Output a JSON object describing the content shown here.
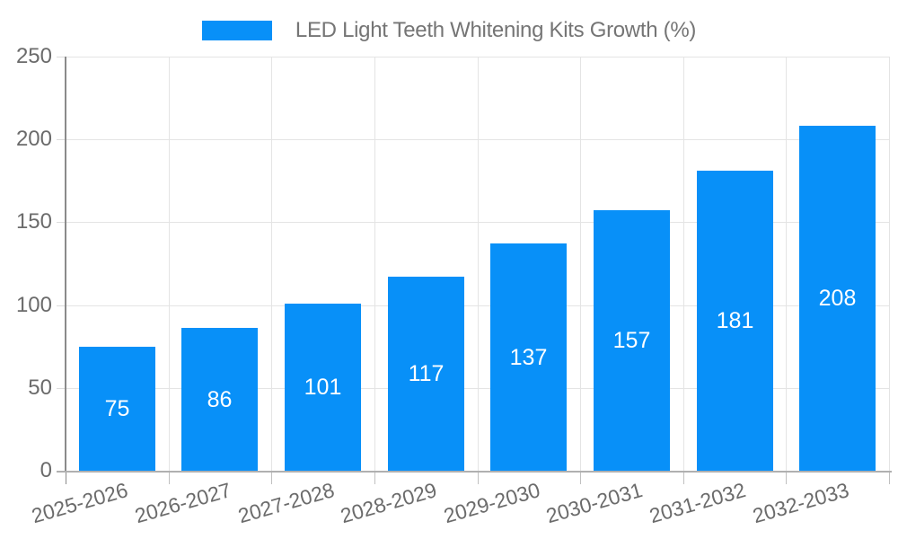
{
  "legend": {
    "label": "LED Light Teeth Whitening Kits Growth (%)"
  },
  "colors": {
    "bar": "#0890f8",
    "background": "#ffffff",
    "grid": "#e4e4e4",
    "y_axis_line": "#8a8a8a",
    "x_axis_line": "#b0b0b0",
    "x_tick": "#c0c0c0",
    "y_tick": "#dcdcdc",
    "axis_label_text": "#6b6b6b",
    "legend_text": "#757575",
    "value_label_text": "#ffffff"
  },
  "chart_data": {
    "type": "bar",
    "title": "LED Light Teeth Whitening Kits Growth (%)",
    "categories": [
      "2025-2026",
      "2026-2027",
      "2027-2028",
      "2028-2029",
      "2029-2030",
      "2030-2031",
      "2031-2032",
      "2032-2033"
    ],
    "values": [
      75,
      86,
      101,
      117,
      137,
      157,
      181,
      208
    ],
    "xlabel": "",
    "ylabel": "",
    "ylim": [
      0,
      250
    ],
    "yticks": [
      0,
      50,
      100,
      150,
      200,
      250
    ],
    "grid": true,
    "legend_position": "top",
    "value_labels": "inside-center"
  }
}
